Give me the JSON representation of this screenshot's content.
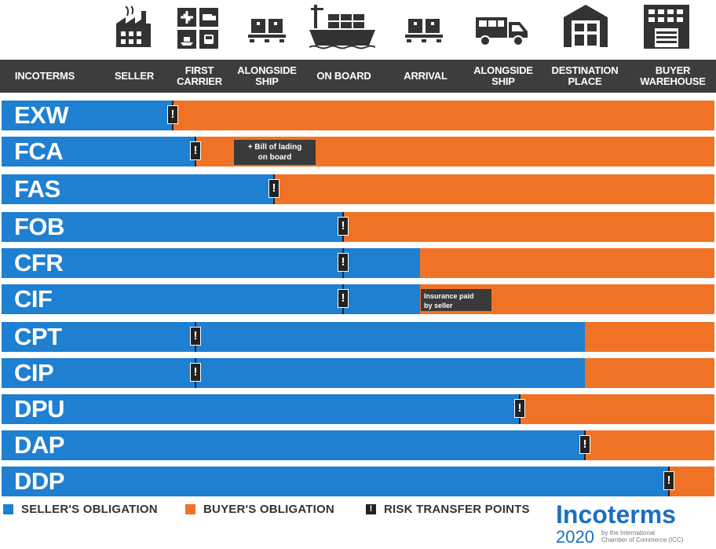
{
  "colors": {
    "seller": "#1f7fd1",
    "buyer": "#f07325",
    "header_bg": "#3d3d3d",
    "marker": "#222222",
    "logo_blue": "#1b6fc2"
  },
  "icons": [
    "factory-icon",
    "transport-modes-icon",
    "pallet-icon",
    "cargo-ship-icon",
    "pallet-icon",
    "delivery-truck-icon",
    "warehouse-icon",
    "office-building-icon"
  ],
  "header": {
    "columns": [
      "INCOTERMS",
      "SELLER",
      "FIRST\nCARRIER",
      "ALONGSIDE\nSHIP",
      "ON BOARD",
      "ARRIVAL",
      "ALONGSIDE\nSHIP",
      "DESTINATION\nPLACE",
      "BUYER\nWAREHOUSE"
    ]
  },
  "rows": [
    {
      "code": "EXW",
      "risk_at": "SELLER",
      "cost_to": "SELLER"
    },
    {
      "code": "FCA",
      "risk_at": "FIRST CARRIER",
      "cost_to": "FIRST CARRIER",
      "note": "+ Bill of lading\non board"
    },
    {
      "code": "FAS",
      "risk_at": "ALONGSIDE SHIP",
      "cost_to": "ALONGSIDE SHIP"
    },
    {
      "code": "FOB",
      "risk_at": "ON BOARD",
      "cost_to": "ON BOARD"
    },
    {
      "code": "CFR",
      "risk_at": "ON BOARD",
      "cost_to": "ARRIVAL"
    },
    {
      "code": "CIF",
      "risk_at": "ON BOARD",
      "cost_to": "ARRIVAL",
      "note": "Insurance paid\nby seller"
    },
    {
      "code": "CPT",
      "risk_at": "FIRST CARRIER",
      "cost_to": "DESTINATION PLACE"
    },
    {
      "code": "CIP",
      "risk_at": "FIRST CARRIER",
      "cost_to": "DESTINATION PLACE"
    },
    {
      "code": "DPU",
      "risk_at": "ALONGSIDE SHIP (DESTINATION)",
      "cost_to": "ALONGSIDE SHIP (DESTINATION)"
    },
    {
      "code": "DAP",
      "risk_at": "DESTINATION PLACE",
      "cost_to": "DESTINATION PLACE"
    },
    {
      "code": "DDP",
      "risk_at": "BUYER WAREHOUSE",
      "cost_to": "BUYER WAREHOUSE"
    }
  ],
  "risk_symbol": "!",
  "legend": {
    "seller": "SELLER'S OBLIGATION",
    "buyer": "BUYER'S OBLIGATION",
    "risk": "RISK TRANSFER POINTS"
  },
  "logo": {
    "brand": "Incoterms",
    "year": "2020",
    "byline": "by the International\nChamber of Commerce (ICC)"
  }
}
